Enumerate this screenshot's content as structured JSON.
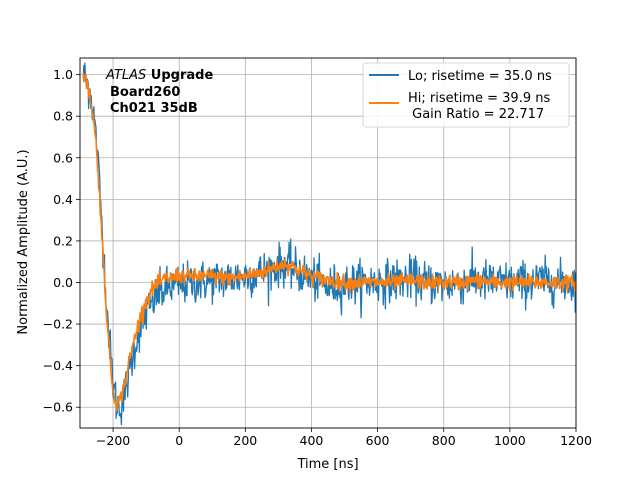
{
  "chart_data": {
    "type": "line",
    "xlabel": "Time [ns]",
    "ylabel": "Normalized Amplitude (A.U.)",
    "xlim": [
      -300,
      1200
    ],
    "ylim": [
      -0.7,
      1.08
    ],
    "xticks": [
      -200,
      0,
      200,
      400,
      600,
      800,
      1000,
      1200
    ],
    "yticks": [
      -0.6,
      -0.4,
      -0.2,
      0.0,
      0.2,
      0.4,
      0.6,
      0.8,
      1.0
    ],
    "xtick_labels": [
      "−200",
      "0",
      "200",
      "400",
      "600",
      "800",
      "1000",
      "1200"
    ],
    "ytick_labels": [
      "−0.6",
      "−0.4",
      "−0.2",
      "0.0",
      "0.2",
      "0.4",
      "0.6",
      "0.8",
      "1.0"
    ],
    "grid": true,
    "legend_position": "top-right",
    "annotation": {
      "line1_italic": "ATLAS",
      "line1_bold": " Upgrade",
      "line2": "Board260",
      "line3": "Ch021 35dB"
    },
    "series": [
      {
        "name": "Lo; risetime = 35.0 ns",
        "color": "#1f77b4",
        "x": [
          -290,
          -280,
          -270,
          -260,
          -250,
          -240,
          -230,
          -220,
          -210,
          -200,
          -190,
          -180,
          -170,
          -160,
          -150,
          -140,
          -130,
          -120,
          -110,
          -100,
          -90,
          -80,
          -70,
          -60,
          -50,
          -40,
          -30,
          -20,
          -10,
          0,
          50,
          100,
          150,
          200,
          250,
          300,
          320,
          350,
          400,
          450,
          500,
          550,
          600,
          650,
          700,
          750,
          800,
          850,
          900,
          950,
          1000,
          1050,
          1100,
          1150,
          1200
        ],
        "y": [
          1.0,
          0.97,
          0.92,
          0.83,
          0.68,
          0.45,
          0.18,
          -0.08,
          -0.3,
          -0.48,
          -0.58,
          -0.6,
          -0.57,
          -0.5,
          -0.42,
          -0.35,
          -0.28,
          -0.23,
          -0.19,
          -0.15,
          -0.12,
          -0.09,
          -0.07,
          -0.05,
          -0.04,
          -0.03,
          -0.02,
          -0.02,
          -0.01,
          -0.01,
          0.0,
          0.01,
          0.02,
          0.03,
          0.05,
          0.08,
          0.09,
          0.06,
          0.02,
          -0.02,
          -0.01,
          0.0,
          0.0,
          0.01,
          0.02,
          0.0,
          -0.01,
          0.0,
          0.01,
          0.0,
          0.0,
          0.0,
          0.01,
          0.0,
          0.0
        ],
        "noise": 0.05
      },
      {
        "name": "Hi; risetime = 39.9 ns\n Gain Ratio = 22.717",
        "color": "#ff7f0e",
        "x": [
          -290,
          -280,
          -270,
          -260,
          -250,
          -240,
          -230,
          -220,
          -210,
          -200,
          -190,
          -180,
          -170,
          -160,
          -150,
          -140,
          -130,
          -120,
          -110,
          -100,
          -90,
          -80,
          -70,
          -60,
          -50,
          -40,
          -30,
          -20,
          -10,
          0,
          50,
          100,
          150,
          200,
          250,
          300,
          320,
          350,
          400,
          450,
          500,
          550,
          600,
          650,
          700,
          750,
          800,
          850,
          900,
          950,
          1000,
          1050,
          1100,
          1150,
          1200
        ],
        "y": [
          1.0,
          0.96,
          0.9,
          0.8,
          0.64,
          0.4,
          0.12,
          -0.14,
          -0.36,
          -0.52,
          -0.58,
          -0.57,
          -0.52,
          -0.45,
          -0.37,
          -0.3,
          -0.24,
          -0.18,
          -0.13,
          -0.09,
          -0.06,
          -0.03,
          -0.01,
          0.0,
          0.01,
          0.02,
          0.02,
          0.02,
          0.03,
          0.03,
          0.03,
          0.03,
          0.02,
          0.03,
          0.05,
          0.08,
          0.09,
          0.07,
          0.03,
          0.01,
          0.0,
          0.0,
          0.0,
          0.0,
          0.01,
          0.0,
          0.0,
          0.0,
          0.01,
          0.0,
          0.0,
          0.0,
          0.0,
          0.0,
          0.0
        ],
        "noise": 0.018
      }
    ]
  }
}
